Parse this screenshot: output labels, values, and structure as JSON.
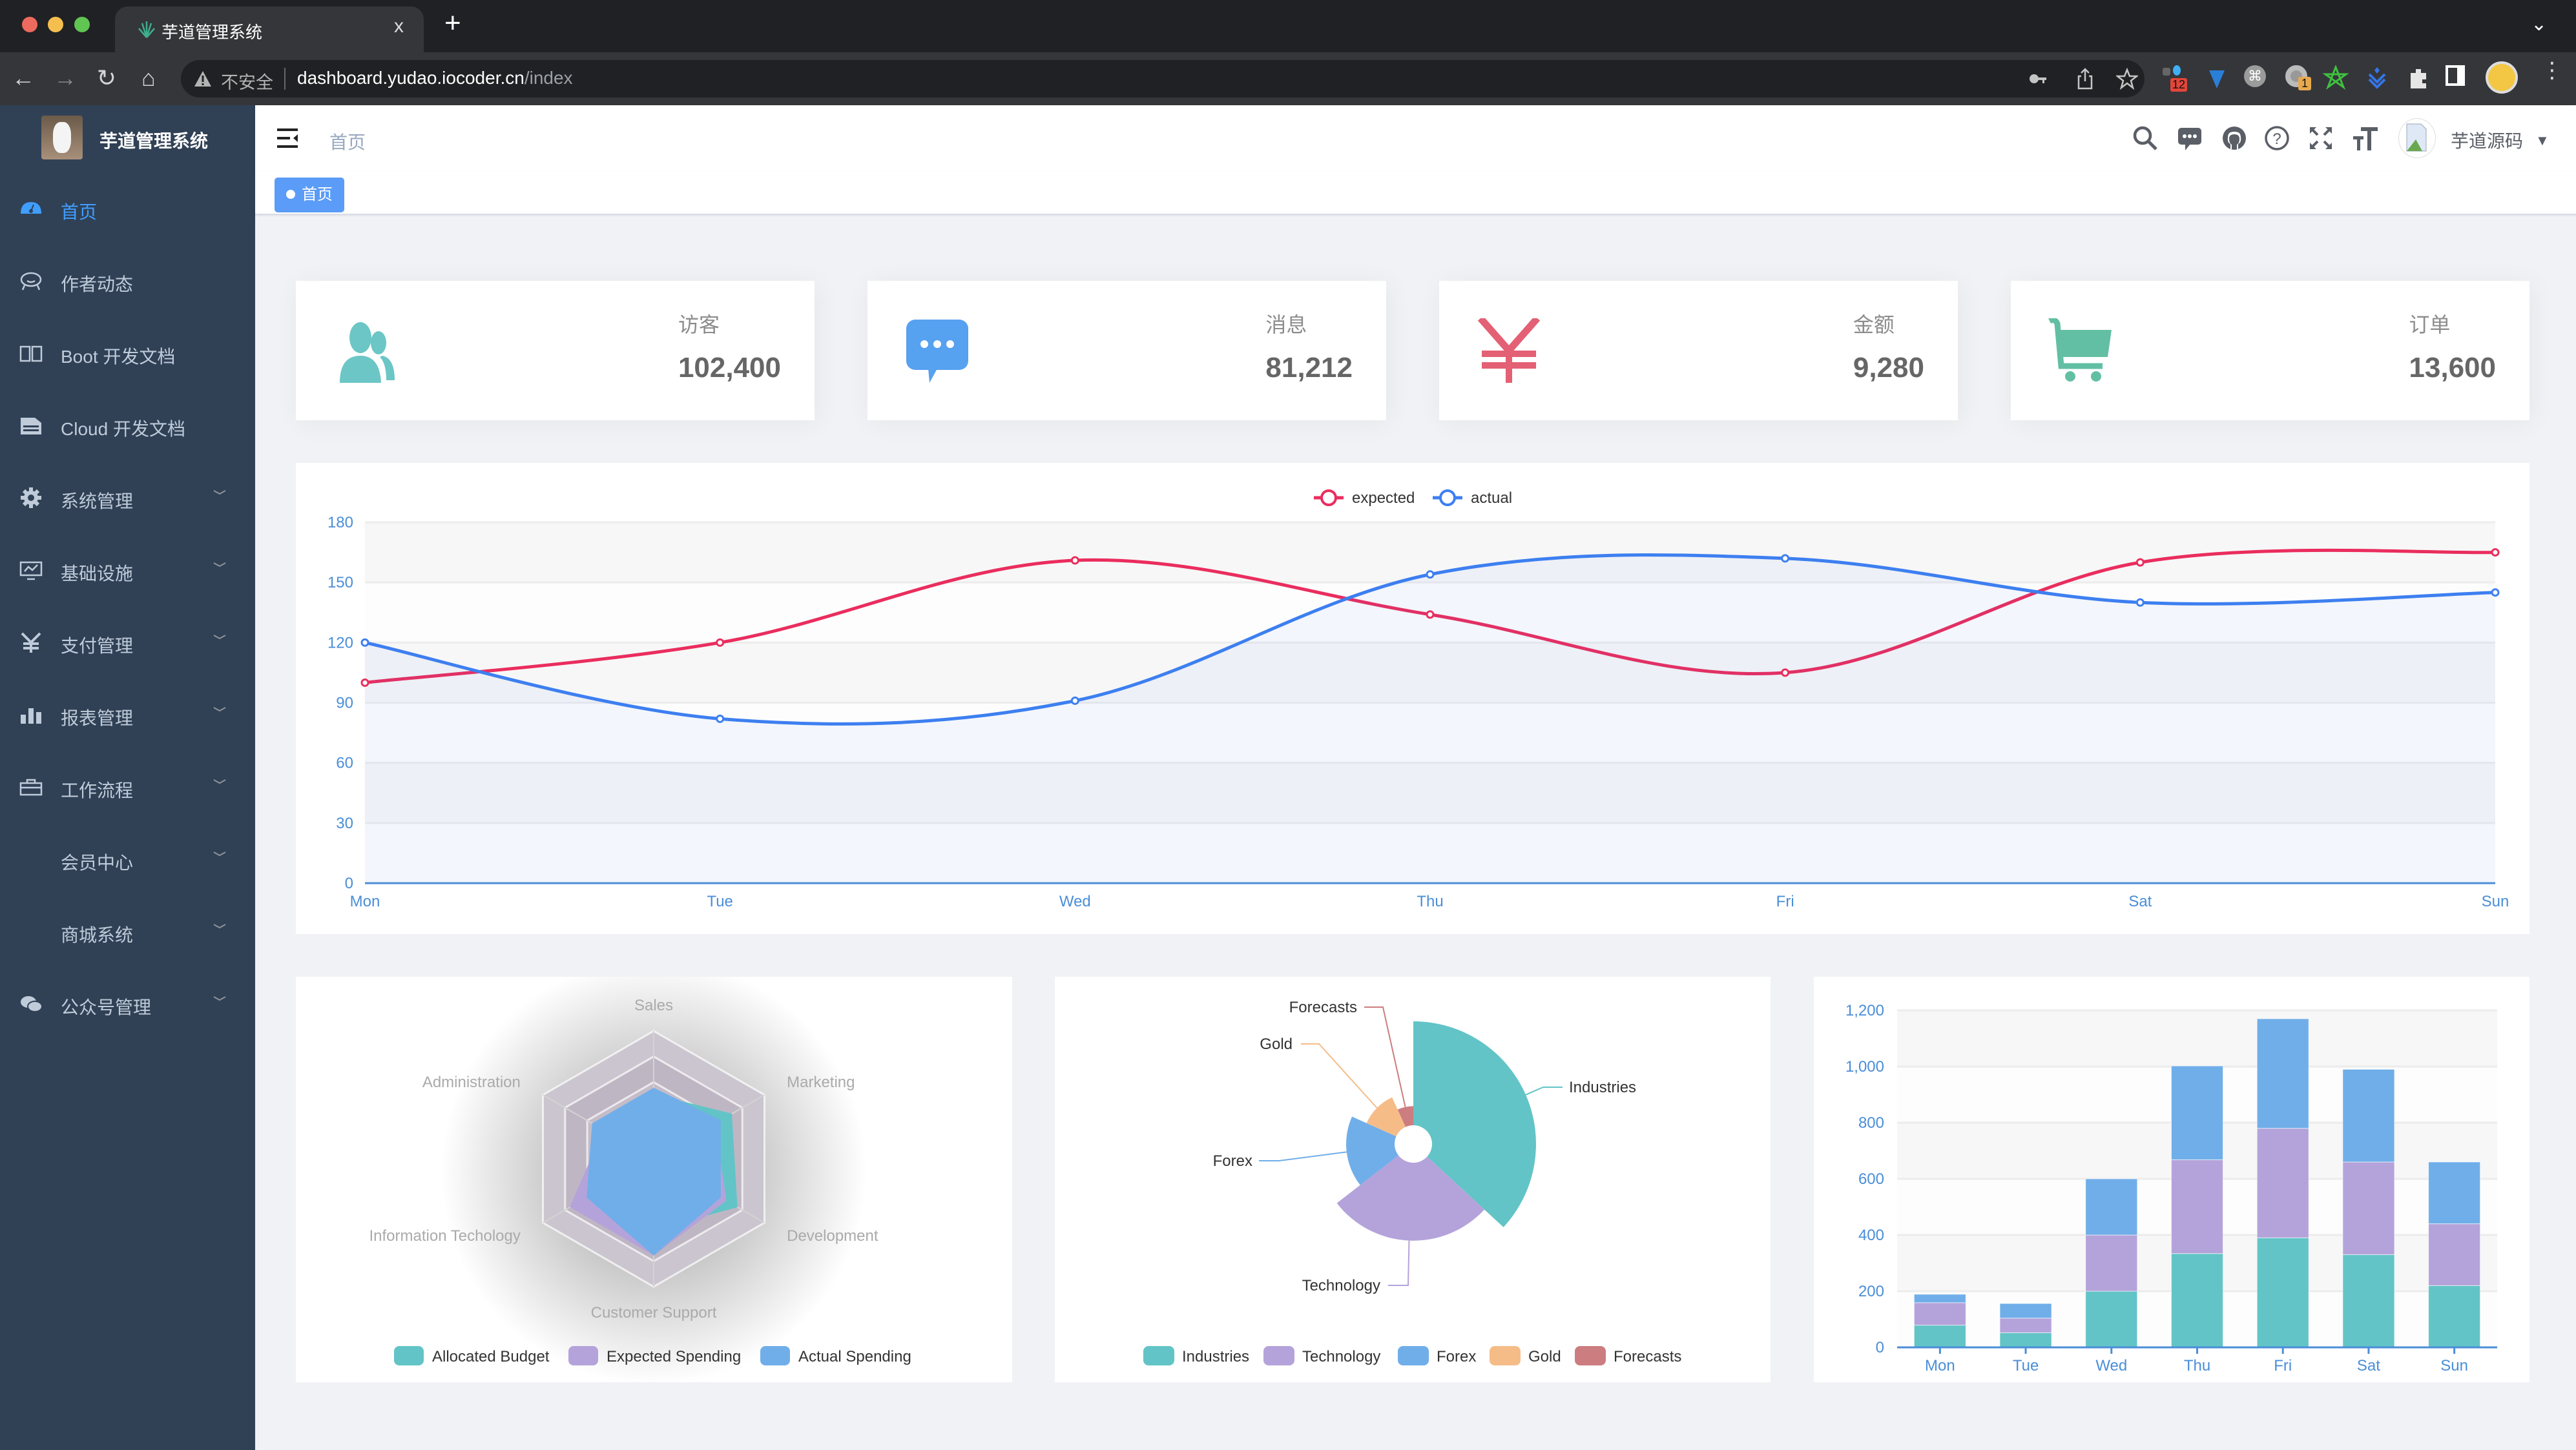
{
  "browser": {
    "tab_title": "芋道管理系统",
    "tab_close": "x",
    "new_tab": "+",
    "security_label": "不安全",
    "url_host": "dashboard.yudao.iocoder.cn",
    "url_path": "/index",
    "extension_badges": [
      "12",
      "1"
    ]
  },
  "sidebar": {
    "title": "芋道管理系统",
    "items": [
      {
        "label": "首页",
        "icon": "dashboard-icon",
        "active": true
      },
      {
        "label": "作者动态",
        "icon": "chat-face-icon"
      },
      {
        "label": "Boot 开发文档",
        "icon": "book-icon"
      },
      {
        "label": "Cloud 开发文档",
        "icon": "document-icon"
      },
      {
        "label": "系统管理",
        "icon": "gear-icon",
        "expandable": true
      },
      {
        "label": "基础设施",
        "icon": "monitor-icon",
        "expandable": true
      },
      {
        "label": "支付管理",
        "icon": "yen-icon",
        "expandable": true
      },
      {
        "label": "报表管理",
        "icon": "bar-chart-icon",
        "expandable": true
      },
      {
        "label": "工作流程",
        "icon": "briefcase-icon",
        "expandable": true
      },
      {
        "label": "会员中心",
        "expandable": true
      },
      {
        "label": "商城系统",
        "expandable": true
      },
      {
        "label": "公众号管理",
        "icon": "wechat-icon",
        "expandable": true
      }
    ]
  },
  "navbar": {
    "breadcrumb": "首页",
    "username": "芋道源码",
    "icons": [
      "search-icon",
      "message-icon",
      "github-icon",
      "help-icon",
      "fullscreen-icon",
      "font-size-icon"
    ]
  },
  "tags": [
    {
      "label": "首页",
      "active": true
    }
  ],
  "stats": [
    {
      "label": "访客",
      "value": "102,400",
      "icon": "peoples-icon",
      "color": "#6cc6c6"
    },
    {
      "label": "消息",
      "value": "81,212",
      "icon": "message-icon",
      "color": "#56a1f0"
    },
    {
      "label": "金额",
      "value": "9,280",
      "icon": "money-icon",
      "color": "#e46074"
    },
    {
      "label": "订单",
      "value": "13,600",
      "icon": "shopping-cart-icon",
      "color": "#62bfa3"
    }
  ],
  "chart_data": [
    {
      "type": "line",
      "categories": [
        "Mon",
        "Tue",
        "Wed",
        "Thu",
        "Fri",
        "Sat",
        "Sun"
      ],
      "series": [
        {
          "name": "expected",
          "values": [
            100,
            120,
            161,
            134,
            105,
            160,
            165
          ],
          "color": "#ea2d5e"
        },
        {
          "name": "actual",
          "values": [
            120,
            82,
            91,
            154,
            162,
            140,
            145
          ],
          "color": "#3d7ff0",
          "area": true
        }
      ],
      "yticks": [
        "0",
        "30",
        "60",
        "90",
        "120",
        "150",
        "180"
      ],
      "ylim": [
        0,
        180
      ],
      "legend": "top-center",
      "grid": true,
      "smooth": true
    },
    {
      "type": "radar",
      "indicators": [
        {
          "name": "Sales",
          "max": 10000
        },
        {
          "name": "Administration",
          "max": 20000
        },
        {
          "name": "Information Techology",
          "max": 20000
        },
        {
          "name": "Customer Support",
          "max": 20000
        },
        {
          "name": "Development",
          "max": 20000
        },
        {
          "name": "Marketing",
          "max": 20000
        }
      ],
      "series": [
        {
          "name": "Allocated Budget",
          "values": [
            5000,
            7000,
            12000,
            11000,
            15000,
            14000
          ],
          "color": "#62c4c6"
        },
        {
          "name": "Expected Spending",
          "values": [
            4000,
            9000,
            15000,
            15000,
            13000,
            11000
          ],
          "color": "#b4a3da"
        },
        {
          "name": "Actual Spending",
          "values": [
            5500,
            11000,
            12000,
            15000,
            12000,
            12000
          ],
          "color": "#70aee9"
        }
      ],
      "legend": "bottom"
    },
    {
      "type": "pie",
      "rose": "radius",
      "slices": [
        {
          "name": "Industries",
          "value": 320,
          "color": "#62c4c6"
        },
        {
          "name": "Technology",
          "value": 240,
          "color": "#b4a3da"
        },
        {
          "name": "Forex",
          "value": 149,
          "color": "#70aee9"
        },
        {
          "name": "Gold",
          "value": 100,
          "color": "#f5bc88"
        },
        {
          "name": "Forecasts",
          "value": 59,
          "color": "#cc7d80"
        }
      ],
      "legend": "bottom"
    },
    {
      "type": "bar",
      "stacked": true,
      "categories": [
        "Mon",
        "Tue",
        "Wed",
        "Thu",
        "Fri",
        "Sat",
        "Sun"
      ],
      "series": [
        {
          "values": [
            79,
            52,
            200,
            334,
            390,
            330,
            220
          ],
          "color": "#62c4c6"
        },
        {
          "values": [
            80,
            52,
            200,
            334,
            390,
            330,
            220
          ],
          "color": "#b4a3da"
        },
        {
          "values": [
            30,
            52,
            200,
            334,
            390,
            330,
            220
          ],
          "color": "#70aee9"
        }
      ],
      "yticks": [
        "0",
        "200",
        "400",
        "600",
        "800",
        "1,000",
        "1,200"
      ],
      "ylim": [
        0,
        1200
      ],
      "grid": true
    }
  ]
}
